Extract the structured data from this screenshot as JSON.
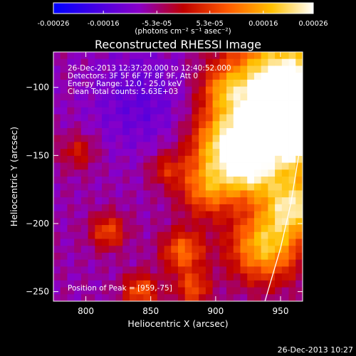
{
  "colorbar": {
    "ticks": [
      "-0.00026",
      "-0.00016",
      "-5.3e-05",
      "5.3e-05",
      "0.00016",
      "0.00026"
    ],
    "tick_values": [
      -0.00026,
      -0.00016,
      -5.3e-05,
      5.3e-05,
      0.00016,
      0.00026
    ],
    "range": [
      -0.00026,
      0.00026
    ],
    "units_label": "(photons cm⁻² s⁻¹ asec⁻²)",
    "colors": [
      "#0000ff",
      "#8a00c8",
      "#c00000",
      "#ff5a00",
      "#ffc000",
      "#ffffff"
    ]
  },
  "chart_data": {
    "type": "heatmap",
    "title": "Reconstructed RHESSI Image",
    "xlabel": "Heliocentric X (arcsec)",
    "ylabel": "Heliocentric Y (arcsec)",
    "xlim": [
      775,
      967
    ],
    "ylim": [
      -257,
      -74
    ],
    "x_ticks": [
      800,
      850,
      900,
      950
    ],
    "y_ticks": [
      -100,
      -150,
      -200,
      -250
    ],
    "x_tick_labels": [
      "800",
      "850",
      "900",
      "950"
    ],
    "y_tick_labels": [
      "−100",
      "−150",
      "−200",
      "−250"
    ],
    "annotations": [
      "26-Dec-2013 12:37:20.000 to 12:40:52.000",
      "Detectors: 3F 5F 6F 7F 8F 9F, Att 0",
      "Energy Range: 12.0 - 25.0 keV",
      "Clean     Total counts: 5.63E+03"
    ],
    "peak_label": "Position of Peak = [959,-75]",
    "peak": [
      959,
      -75
    ],
    "limb": [
      [
        938,
        -257
      ],
      [
        950,
        -218
      ],
      [
        958,
        -185
      ],
      [
        964,
        -150
      ],
      [
        967,
        -120
      ]
    ],
    "grid": false
  },
  "timestamp": "26-Dec-2013 10:27"
}
